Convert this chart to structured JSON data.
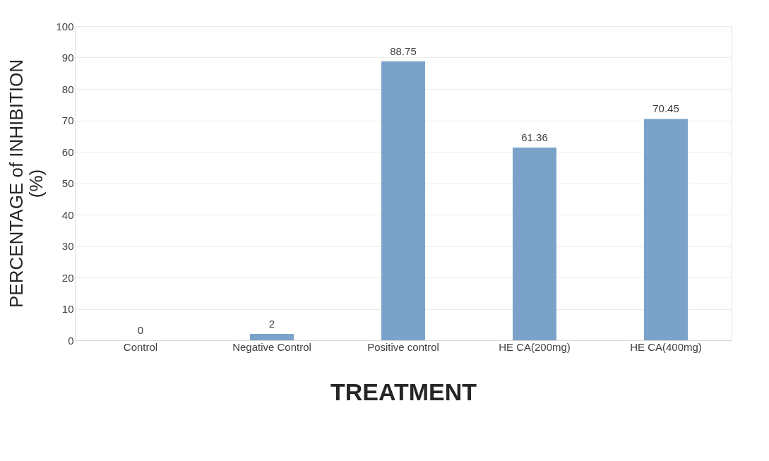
{
  "chart_data": {
    "type": "bar",
    "xlabel": "TREATMENT",
    "ylabel": "PERCENTAGE  of INHIBITION (%)",
    "categories": [
      "Control",
      "Negative Control",
      "Positive control",
      "HE CA(200mg)",
      "HE CA(400mg)"
    ],
    "values": [
      0,
      2,
      88.75,
      61.36,
      70.45
    ],
    "color": "#7ba3c9",
    "ylim": [
      0,
      100
    ],
    "yticks": [
      0,
      10,
      20,
      30,
      40,
      50,
      60,
      70,
      80,
      90,
      100
    ],
    "grid": "y",
    "data_labels": true
  }
}
